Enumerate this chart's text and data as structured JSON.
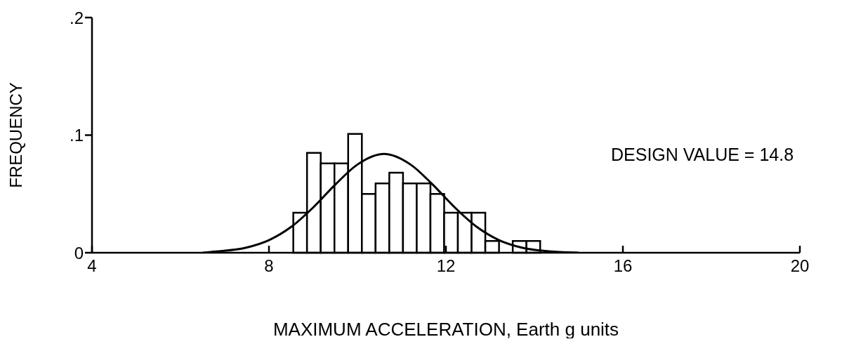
{
  "chart_data": {
    "type": "histogram",
    "xlabel": "MAXIMUM ACCELERATION, Earth g units",
    "ylabel": "FREQUENCY",
    "bins": [
      8.55,
      8.86,
      9.17,
      9.48,
      9.79,
      10.1,
      10.41,
      10.72,
      11.03,
      11.34,
      11.65,
      11.96,
      12.27,
      12.58,
      12.89,
      13.2,
      13.51,
      13.82,
      14.13
    ],
    "values": [
      0.034,
      0.085,
      0.076,
      0.076,
      0.101,
      0.05,
      0.059,
      0.068,
      0.059,
      0.059,
      0.05,
      0.034,
      0.034,
      0.034,
      0.01,
      0,
      0.01,
      0.01
    ],
    "color": "#000000",
    "series": [
      {
        "type": "line",
        "color": "#000000",
        "x": [
          6.5,
          6.8,
          7.5,
          8,
          8.5,
          9,
          9.5,
          10,
          10.6,
          11.2,
          11.7,
          12.2,
          12.7,
          13.2,
          13.7,
          14.4,
          15
        ],
        "values": [
          0,
          0.001,
          0.0045,
          0.0107,
          0.0219,
          0.0385,
          0.058,
          0.075,
          0.084,
          0.075,
          0.058,
          0.0385,
          0.0219,
          0.0107,
          0.0045,
          0.001,
          0
        ]
      }
    ],
    "xlim": [
      4,
      20
    ],
    "xticks": [
      4,
      8,
      12,
      16,
      20
    ],
    "ylim": [
      0,
      0.2
    ],
    "yticks": [
      {
        "value": 0,
        "label": "0"
      },
      {
        "value": 0.1,
        "label": ".1"
      },
      {
        "value": 0.2,
        "label": ".2"
      }
    ],
    "annotations": [
      "DESIGN VALUE = 14.8"
    ],
    "grid": false
  }
}
